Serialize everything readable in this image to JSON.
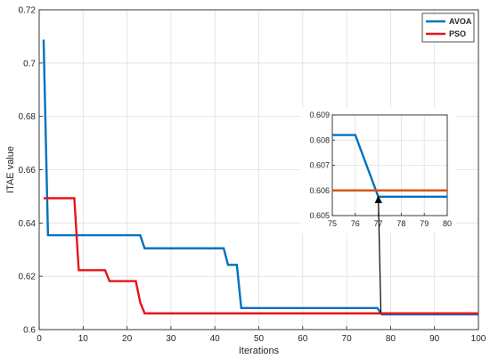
{
  "chart_data": [
    {
      "type": "line",
      "xlabel": "Iterations",
      "ylabel": "ITAE value",
      "xlim": [
        0,
        100
      ],
      "ylim": [
        0.6,
        0.72
      ],
      "xticks": [
        "0",
        "10",
        "20",
        "30",
        "40",
        "50",
        "60",
        "70",
        "80",
        "90",
        "100"
      ],
      "yticks": [
        "0.6",
        "0.62",
        "0.64",
        "0.66",
        "0.68",
        "0.7",
        "0.72"
      ],
      "grid": true,
      "legend": "top-right",
      "series": [
        {
          "name": "AVOA",
          "color": "#0072BD",
          "points": [
            [
              1,
              0.7088
            ],
            [
              2,
              0.6354
            ],
            [
              23,
              0.6354
            ],
            [
              24,
              0.6305
            ],
            [
              42,
              0.6305
            ],
            [
              43,
              0.6243
            ],
            [
              45,
              0.6243
            ],
            [
              46,
              0.6081
            ],
            [
              77,
              0.6081
            ],
            [
              78,
              0.6057
            ],
            [
              100,
              0.6057
            ]
          ]
        },
        {
          "name": "PSO",
          "color": "#E8141C",
          "points": [
            [
              1,
              0.6493
            ],
            [
              8,
              0.6493
            ],
            [
              9,
              0.6223
            ],
            [
              15,
              0.6223
            ],
            [
              16,
              0.6182
            ],
            [
              22,
              0.6182
            ],
            [
              23,
              0.6102
            ],
            [
              24,
              0.6061
            ],
            [
              100,
              0.6061
            ]
          ]
        }
      ]
    },
    {
      "type": "line",
      "role": "zoom-inset",
      "xlim": [
        75,
        80
      ],
      "ylim": [
        0.605,
        0.609
      ],
      "xticks": [
        "75",
        "76",
        "77",
        "78",
        "79",
        "80"
      ],
      "yticks": [
        "0.605",
        "0.606",
        "0.607",
        "0.608",
        "0.609"
      ],
      "grid": true,
      "series": [
        {
          "color": "#0072BD",
          "points": [
            [
              75,
              0.6082
            ],
            [
              76,
              0.6082
            ],
            [
              77,
              0.60575
            ],
            [
              80,
              0.60575
            ]
          ]
        },
        {
          "color": "#D95319",
          "points": [
            [
              75,
              0.606
            ],
            [
              80,
              0.606
            ]
          ]
        }
      ],
      "annotation": {
        "type": "arrow",
        "from": [
          77.8,
          0.6057
        ],
        "to": [
          77,
          0.6058
        ]
      }
    }
  ]
}
